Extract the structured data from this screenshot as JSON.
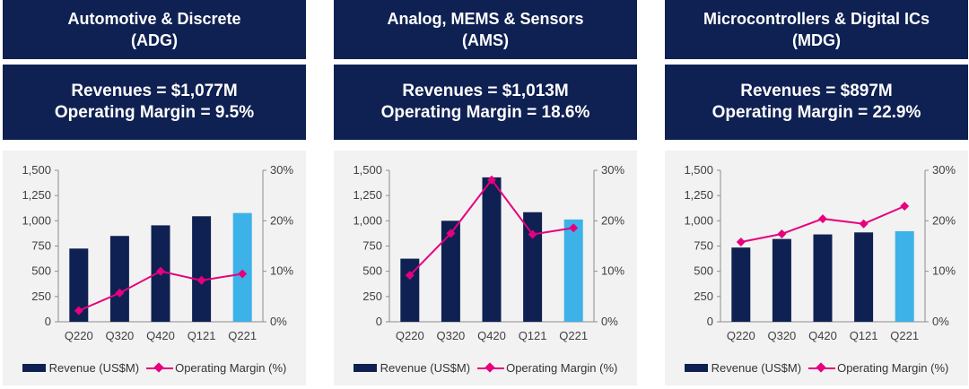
{
  "colors": {
    "header_bg": "#0f2152",
    "bar": "#0f2152",
    "bar_highlight": "#3db2e8",
    "line": "#e6007e",
    "chart_bg": "#f2f2f2"
  },
  "segments": [
    {
      "title_line1": "Automotive & Discrete",
      "title_line2": "(ADG)",
      "revenue_text": "Revenues = $1,077M",
      "margin_text": "Operating Margin = 9.5%"
    },
    {
      "title_line1": "Analog, MEMS & Sensors",
      "title_line2": "(AMS)",
      "revenue_text": "Revenues = $1,013M",
      "margin_text": "Operating Margin = 18.6%"
    },
    {
      "title_line1": "Microcontrollers & Digital ICs",
      "title_line2": "(MDG)",
      "revenue_text": "Revenues = $897M",
      "margin_text": "Operating Margin = 22.9%"
    }
  ],
  "legend": {
    "bar_label": "Revenue (US$M)",
    "line_label": "Operating Margin (%)"
  },
  "chart_data": [
    {
      "type": "bar+line",
      "categories": [
        "Q220",
        "Q320",
        "Q420",
        "Q121",
        "Q221"
      ],
      "series": [
        {
          "name": "Revenue (US$M)",
          "axis": "left",
          "values": [
            725,
            850,
            955,
            1045,
            1077
          ]
        },
        {
          "name": "Operating Margin (%)",
          "axis": "right",
          "values": [
            2.2,
            5.7,
            10.0,
            8.2,
            9.5
          ]
        }
      ],
      "y_left": {
        "range": [
          0,
          1500
        ],
        "ticks": [
          "0",
          "250",
          "500",
          "750",
          "1,000",
          "1,250",
          "1,500"
        ]
      },
      "y_right": {
        "range": [
          0,
          30
        ],
        "ticks": [
          "0%",
          "10%",
          "20%",
          "30%"
        ]
      },
      "highlight_last": true
    },
    {
      "type": "bar+line",
      "categories": [
        "Q220",
        "Q320",
        "Q420",
        "Q121",
        "Q221"
      ],
      "series": [
        {
          "name": "Revenue (US$M)",
          "axis": "left",
          "values": [
            625,
            1000,
            1430,
            1085,
            1013
          ]
        },
        {
          "name": "Operating Margin (%)",
          "axis": "right",
          "values": [
            9.2,
            17.5,
            28.1,
            17.3,
            18.6
          ]
        }
      ],
      "y_left": {
        "range": [
          0,
          1500
        ],
        "ticks": [
          "0",
          "250",
          "500",
          "750",
          "1,000",
          "1,250",
          "1,500"
        ]
      },
      "y_right": {
        "range": [
          0,
          30
        ],
        "ticks": [
          "0%",
          "10%",
          "20%",
          "30%"
        ]
      },
      "highlight_last": true
    },
    {
      "type": "bar+line",
      "categories": [
        "Q220",
        "Q320",
        "Q420",
        "Q121",
        "Q221"
      ],
      "series": [
        {
          "name": "Revenue (US$M)",
          "axis": "left",
          "values": [
            735,
            820,
            865,
            885,
            897
          ]
        },
        {
          "name": "Operating Margin (%)",
          "axis": "right",
          "values": [
            15.8,
            17.4,
            20.4,
            19.4,
            22.9
          ]
        }
      ],
      "y_left": {
        "range": [
          0,
          1500
        ],
        "ticks": [
          "0",
          "250",
          "500",
          "750",
          "1,000",
          "1,250",
          "1,500"
        ]
      },
      "y_right": {
        "range": [
          0,
          30
        ],
        "ticks": [
          "0%",
          "10%",
          "20%",
          "30%"
        ]
      },
      "highlight_last": true
    }
  ]
}
